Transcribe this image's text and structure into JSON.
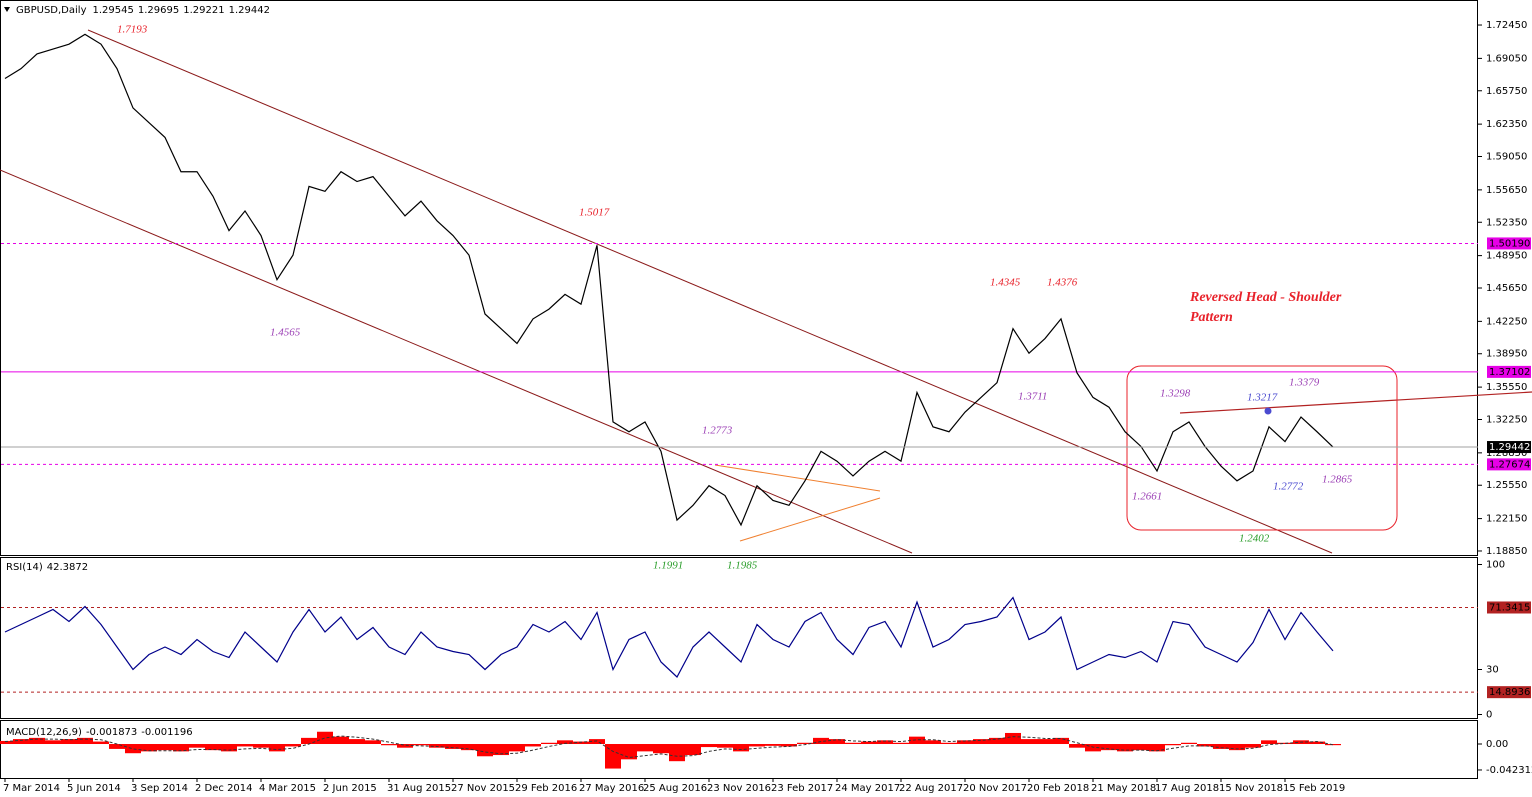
{
  "chart_data": [
    {
      "type": "line",
      "title": "GBPUSD,Daily",
      "open": 1.29545,
      "high": 1.29695,
      "low": 1.29221,
      "color": "#000000",
      "categories": [
        "7 Mar 2014",
        null,
        null,
        null,
        "5 Jun 2014",
        null,
        null,
        null,
        "3 Sep 2014",
        null,
        null,
        null,
        "2 Dec 2014",
        null,
        null,
        null,
        "4 Mar 2015",
        null,
        null,
        null,
        "2 Jun 2015",
        null,
        null,
        null,
        "31 Aug 2015",
        null,
        null,
        null,
        "27 Nov 2015",
        null,
        null,
        null,
        "29 Feb 2016",
        null,
        null,
        null,
        "27 May 2016",
        null,
        null,
        null,
        "25 Aug 2016",
        null,
        null,
        null,
        "23 Nov 2016",
        null,
        null,
        null,
        "23 Feb 2017",
        null,
        null,
        null,
        "24 May 2017",
        null,
        null,
        null,
        "22 Aug 2017",
        null,
        null,
        null,
        "20 Nov 2017",
        null,
        null,
        null,
        "20 Feb 2018",
        null,
        null,
        null,
        "21 May 2018",
        null,
        null,
        null,
        "17 Aug 2018",
        null,
        null,
        null,
        "15 Nov 2018",
        null,
        null,
        null,
        "15 Feb 2019",
        null,
        null,
        null
      ],
      "values": [
        1.67,
        1.68,
        1.695,
        1.7,
        1.705,
        1.715,
        1.705,
        1.68,
        1.64,
        1.625,
        1.61,
        1.575,
        1.575,
        1.55,
        1.515,
        1.535,
        1.51,
        1.465,
        1.49,
        1.56,
        1.555,
        1.575,
        1.565,
        1.57,
        1.55,
        1.53,
        1.545,
        1.525,
        1.51,
        1.49,
        1.43,
        1.415,
        1.4,
        1.425,
        1.435,
        1.45,
        1.44,
        1.5,
        1.32,
        1.31,
        1.32,
        1.29,
        1.22,
        1.235,
        1.255,
        1.245,
        1.215,
        1.255,
        1.24,
        1.235,
        1.26,
        1.29,
        1.28,
        1.265,
        1.28,
        1.29,
        1.28,
        1.35,
        1.315,
        1.31,
        1.33,
        1.345,
        1.36,
        1.415,
        1.39,
        1.405,
        1.425,
        1.37,
        1.345,
        1.335,
        1.31,
        1.295,
        1.27,
        1.31,
        1.32,
        1.295,
        1.275,
        1.26,
        1.27,
        1.315,
        1.3,
        1.325,
        1.31,
        1.29442
      ],
      "ylim": [
        1.1844,
        1.75
      ],
      "yticks": [
        {
          "value": 1.7245,
          "label": "1.72450"
        },
        {
          "value": 1.6905,
          "label": "1.69050"
        },
        {
          "value": 1.6575,
          "label": "1.65750"
        },
        {
          "value": 1.6235,
          "label": "1.62350"
        },
        {
          "value": 1.5905,
          "label": "1.59050"
        },
        {
          "value": 1.5565,
          "label": "1.55650"
        },
        {
          "value": 1.5235,
          "label": "1.52350"
        },
        {
          "value": 1.4895,
          "label": "1.48950"
        },
        {
          "value": 1.4565,
          "label": "1.45650"
        },
        {
          "value": 1.4225,
          "label": "1.42250"
        },
        {
          "value": 1.3895,
          "label": "1.38950"
        },
        {
          "value": 1.3555,
          "label": "1.35550"
        },
        {
          "value": 1.3225,
          "label": "1.32250"
        },
        {
          "value": 1.2885,
          "label": "1.28850"
        },
        {
          "value": 1.2555,
          "label": "1.25550"
        },
        {
          "value": 1.2215,
          "label": "1.22150"
        },
        {
          "value": 1.1885,
          "label": "1.18850"
        }
      ],
      "levels": [
        {
          "value": 1.5019,
          "label": "1.50190",
          "color": "#e600e6",
          "dash": true
        },
        {
          "value": 1.37102,
          "color": "#e600e6",
          "dash": false
        },
        {
          "value": 1.27674,
          "color": "#e600e6",
          "dash": true
        }
      ],
      "annotations": [
        {
          "value": 1.7193,
          "color": "#e8212a"
        },
        {
          "value": 1.5017,
          "color": "#e8212a"
        },
        {
          "value": 1.4565,
          "color": "#9b3fb5"
        },
        {
          "value": 1.4345,
          "color": "#e8212a"
        },
        {
          "value": 1.4376,
          "color": "#e8212a"
        },
        {
          "value": 1.3711,
          "color": "#9b3fb5"
        },
        {
          "value": 1.2773,
          "color": "#9b3fb5"
        },
        {
          "value": 1.1991,
          "color": "#2a9d2a"
        },
        {
          "value": 1.1985,
          "color": "#2a9d2a"
        },
        {
          "value": 1.3298,
          "color": "#9b3fb5"
        },
        {
          "value": 1.3217,
          "color": "#4a4ad0"
        },
        {
          "value": 1.3379,
          "color": "#9b3fb5"
        },
        {
          "value": 1.2661,
          "color": "#9b3fb5"
        },
        {
          "value": 1.2772,
          "color": "#4a4ad0"
        },
        {
          "value": 1.2865,
          "color": "#9b3fb5"
        },
        {
          "value": 1.2402,
          "color": "#2a9d2a"
        }
      ],
      "pattern_text": [
        "Reversed Head - Shoulder",
        "Pattern"
      ]
    },
    {
      "type": "line",
      "title": "RSI(14)",
      "color": "#00008b",
      "values": [
        55,
        60,
        65,
        70,
        62,
        72,
        60,
        45,
        30,
        40,
        45,
        40,
        50,
        42,
        38,
        55,
        45,
        35,
        55,
        70,
        55,
        65,
        50,
        58,
        45,
        40,
        55,
        45,
        42,
        40,
        30,
        40,
        45,
        60,
        55,
        62,
        50,
        68,
        30,
        50,
        55,
        35,
        25,
        45,
        55,
        45,
        35,
        60,
        50,
        45,
        62,
        68,
        50,
        40,
        58,
        62,
        45,
        75,
        45,
        50,
        60,
        62,
        65,
        78,
        50,
        55,
        65,
        30,
        35,
        40,
        38,
        42,
        35,
        62,
        60,
        45,
        40,
        35,
        48,
        70,
        50,
        68,
        55,
        42.3872
      ],
      "ylim": [
        -3,
        105
      ],
      "yticks": [
        100,
        30,
        0
      ],
      "levels": [
        {
          "value": 71.3415,
          "color": "#b22222",
          "dash": true
        },
        {
          "value": 14.8936,
          "color": "#b22222",
          "dash": true
        }
      ]
    },
    {
      "type": "macd",
      "title": "MACD(12,26,9)",
      "color": "#ff0000",
      "signal_color": "#333333",
      "values": [
        0.005,
        0.008,
        0.01,
        0.006,
        0.008,
        0.01,
        0.004,
        -0.008,
        -0.015,
        -0.012,
        -0.01,
        -0.012,
        -0.006,
        -0.01,
        -0.012,
        -0.004,
        -0.006,
        -0.012,
        -0.004,
        0.01,
        0.02,
        0.012,
        0.008,
        0.006,
        -0.002,
        -0.006,
        -0.002,
        -0.006,
        -0.008,
        -0.01,
        -0.02,
        -0.018,
        -0.012,
        -0.004,
        0.002,
        0.006,
        0.004,
        0.008,
        -0.04,
        -0.025,
        -0.012,
        -0.015,
        -0.028,
        -0.018,
        -0.005,
        -0.006,
        -0.012,
        -0.004,
        -0.003,
        -0.004,
        0.002,
        0.01,
        0.008,
        0.002,
        0.004,
        0.006,
        0.002,
        0.012,
        0.006,
        0.002,
        0.006,
        0.008,
        0.01,
        0.018,
        0.008,
        0.008,
        0.01,
        -0.006,
        -0.012,
        -0.01,
        -0.012,
        -0.01,
        -0.012,
        -0.002,
        0.002,
        -0.004,
        -0.008,
        -0.01,
        -0.006,
        0.006,
        0.002,
        0.006,
        0.004,
        -0.001873
      ],
      "signal": [
        0.004,
        0.006,
        0.008,
        0.008,
        0.007,
        0.008,
        0.007,
        0.0,
        -0.008,
        -0.011,
        -0.011,
        -0.011,
        -0.009,
        -0.009,
        -0.01,
        -0.008,
        -0.007,
        -0.009,
        -0.007,
        0.0,
        0.01,
        0.013,
        0.011,
        0.008,
        0.003,
        -0.002,
        -0.003,
        -0.004,
        -0.006,
        -0.008,
        -0.013,
        -0.016,
        -0.015,
        -0.01,
        -0.004,
        0.001,
        0.003,
        0.005,
        -0.012,
        -0.022,
        -0.019,
        -0.016,
        -0.02,
        -0.019,
        -0.012,
        -0.008,
        -0.009,
        -0.007,
        -0.005,
        -0.004,
        -0.001,
        0.004,
        0.007,
        0.005,
        0.004,
        0.005,
        0.004,
        0.007,
        0.007,
        0.004,
        0.005,
        0.006,
        0.008,
        0.012,
        0.011,
        0.009,
        0.009,
        0.002,
        -0.005,
        -0.008,
        -0.01,
        -0.01,
        -0.011,
        -0.007,
        -0.003,
        -0.003,
        -0.006,
        -0.008,
        -0.007,
        -0.001,
        0.001,
        0.003,
        0.004,
        -0.001196
      ],
      "ylim": [
        -0.0554,
        0.0375
      ],
      "yticks": [
        {
          "value": 0,
          "label": "0.00"
        },
        -0.042312
      ]
    }
  ]
}
